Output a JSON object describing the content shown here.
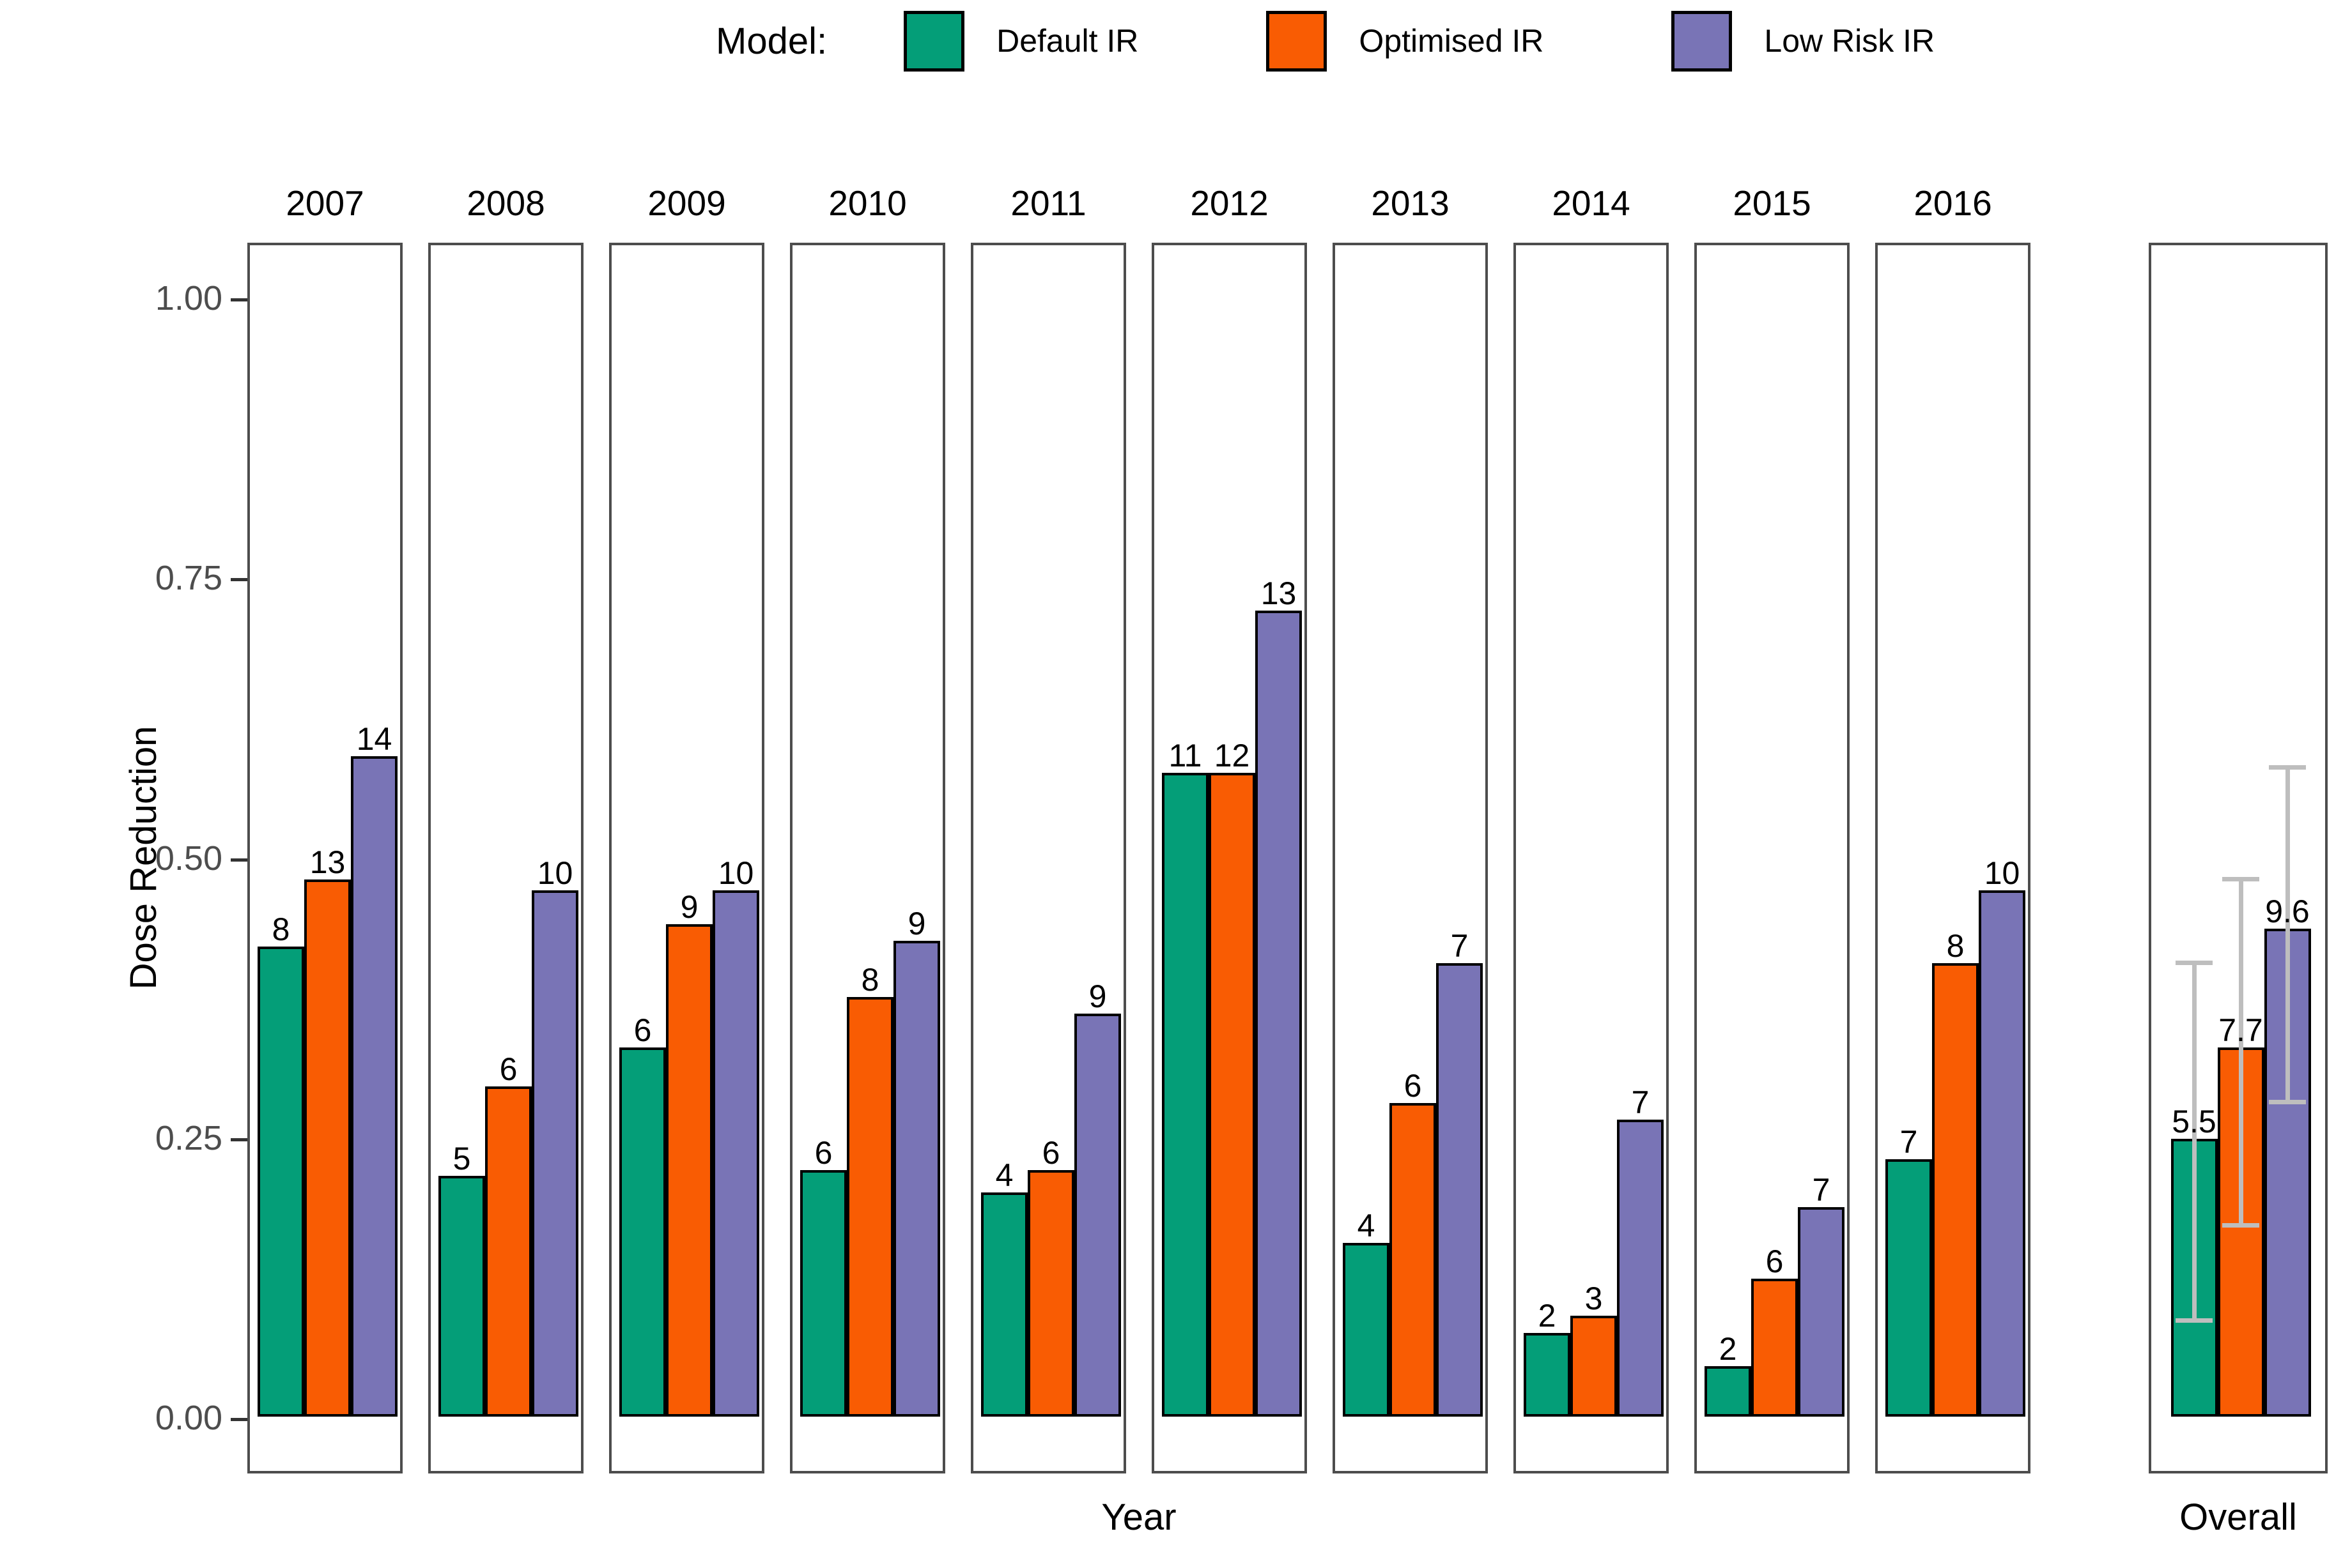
{
  "chart_data": {
    "type": "bar",
    "title": "",
    "ylabel": "Dose Reduction",
    "xlabel": "Year",
    "overall_xlabel": "Overall",
    "legend": {
      "title": "Model:",
      "entries": [
        {
          "name": "Default IR",
          "color": "#049E78"
        },
        {
          "name": "Optimised IR",
          "color": "#F95C03"
        },
        {
          "name": "Low Risk IR",
          "color": "#7974B6"
        }
      ]
    },
    "yticks": [
      {
        "v": 1.0,
        "label": "1.00"
      },
      {
        "v": 0.75,
        "label": "0.75"
      },
      {
        "v": 0.5,
        "label": "0.50"
      },
      {
        "v": 0.25,
        "label": "0.25"
      },
      {
        "v": 0.0,
        "label": "0.00"
      }
    ],
    "ylim": [
      -0.0485,
      1.0508
    ],
    "grid": "off",
    "legend_position": "top",
    "series_names": [
      "Default IR",
      "Optimised IR",
      "Low Risk IR"
    ],
    "facets": [
      {
        "year": "2007",
        "values": [
          0.42,
          0.48,
          0.59
        ],
        "labels": [
          "8",
          "13",
          "14"
        ]
      },
      {
        "year": "2008",
        "values": [
          0.215,
          0.295,
          0.47
        ],
        "labels": [
          "5",
          "6",
          "10"
        ]
      },
      {
        "year": "2009",
        "values": [
          0.33,
          0.44,
          0.47
        ],
        "labels": [
          "6",
          "9",
          "10"
        ]
      },
      {
        "year": "2010",
        "values": [
          0.22,
          0.375,
          0.425
        ],
        "labels": [
          "6",
          "8",
          "9"
        ]
      },
      {
        "year": "2011",
        "values": [
          0.2,
          0.22,
          0.36
        ],
        "labels": [
          "4",
          "6",
          "9"
        ]
      },
      {
        "year": "2012",
        "values": [
          0.575,
          0.575,
          0.72
        ],
        "labels": [
          "11",
          "12",
          "13"
        ]
      },
      {
        "year": "2013",
        "values": [
          0.155,
          0.28,
          0.405
        ],
        "labels": [
          "4",
          "6",
          "7"
        ]
      },
      {
        "year": "2014",
        "values": [
          0.075,
          0.09,
          0.265
        ],
        "labels": [
          "2",
          "3",
          "7"
        ]
      },
      {
        "year": "2015",
        "values": [
          0.045,
          0.123,
          0.187
        ],
        "labels": [
          "2",
          "6",
          "7"
        ]
      },
      {
        "year": "2016",
        "values": [
          0.23,
          0.405,
          0.47
        ],
        "labels": [
          "7",
          "8",
          "10"
        ]
      }
    ],
    "overall": {
      "label": "Overall",
      "values": [
        0.248,
        0.33,
        0.436
      ],
      "labels": [
        "5.5",
        "7.7",
        "9.6"
      ],
      "error_low": [
        0.09,
        0.175,
        0.285
      ],
      "error_high": [
        0.41,
        0.485,
        0.585
      ]
    },
    "colors": {
      "bar_stroke": "#000000",
      "panel_border": "#4D4D4D",
      "error_bar": "#BEBEBE",
      "tick_label": "#4D4D4D"
    }
  }
}
